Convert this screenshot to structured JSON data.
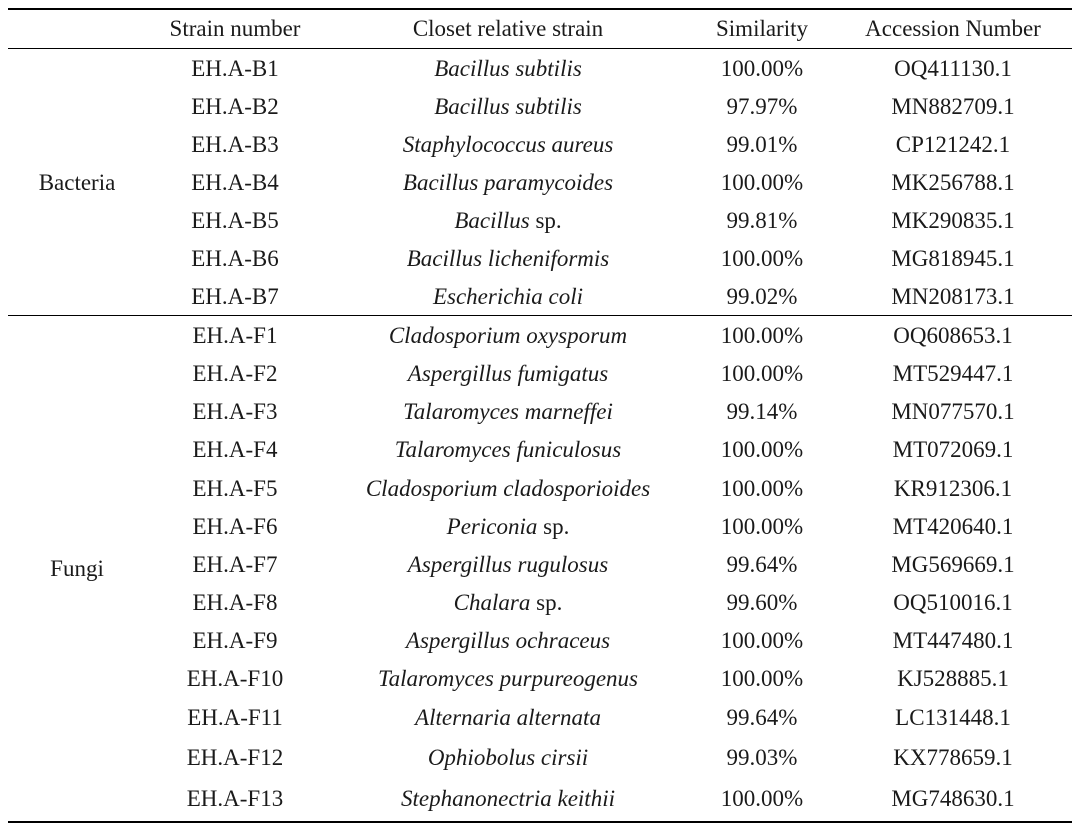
{
  "table": {
    "headers": {
      "group": "",
      "strain": "Strain number",
      "relative": "Closet relative strain",
      "similarity": "Similarity",
      "accession": "Accession Number"
    },
    "groups": [
      {
        "label": "Bacteria"
      },
      {
        "label": "Fungi"
      }
    ],
    "rows": [
      {
        "strain": "EH.A-B1",
        "species": "Bacillus subtilis",
        "suffix": "",
        "similarity": "100.00%",
        "accession": "OQ411130.1"
      },
      {
        "strain": "EH.A-B2",
        "species": "Bacillus subtilis",
        "suffix": "",
        "similarity": "97.97%",
        "accession": "MN882709.1"
      },
      {
        "strain": "EH.A-B3",
        "species": "Staphylococcus aureus",
        "suffix": "",
        "similarity": "99.01%",
        "accession": "CP121242.1"
      },
      {
        "strain": "EH.A-B4",
        "species": "Bacillus paramycoides",
        "suffix": "",
        "similarity": "100.00%",
        "accession": "MK256788.1"
      },
      {
        "strain": "EH.A-B5",
        "species": "Bacillus",
        "suffix": " sp.",
        "similarity": "99.81%",
        "accession": "MK290835.1"
      },
      {
        "strain": "EH.A-B6",
        "species": "Bacillus licheniformis",
        "suffix": "",
        "similarity": "100.00%",
        "accession": "MG818945.1"
      },
      {
        "strain": "EH.A-B7",
        "species": "Escherichia coli",
        "suffix": "",
        "similarity": "99.02%",
        "accession": "MN208173.1"
      },
      {
        "strain": "EH.A-F1",
        "species": "Cladosporium oxysporum",
        "suffix": "",
        "similarity": "100.00%",
        "accession": "OQ608653.1"
      },
      {
        "strain": "EH.A-F2",
        "species": "Aspergillus fumigatus",
        "suffix": "",
        "similarity": "100.00%",
        "accession": "MT529447.1"
      },
      {
        "strain": "EH.A-F3",
        "species": "Talaromyces marneffei",
        "suffix": "",
        "similarity": "99.14%",
        "accession": "MN077570.1"
      },
      {
        "strain": "EH.A-F4",
        "species": "Talaromyces funiculosus",
        "suffix": "",
        "similarity": "100.00%",
        "accession": "MT072069.1"
      },
      {
        "strain": "EH.A-F5",
        "species": "Cladosporium cladosporioides",
        "suffix": "",
        "similarity": "100.00%",
        "accession": "KR912306.1"
      },
      {
        "strain": "EH.A-F6",
        "species": "Periconia",
        "suffix": " sp.",
        "similarity": "100.00%",
        "accession": "MT420640.1"
      },
      {
        "strain": "EH.A-F7",
        "species": "Aspergillus rugulosus",
        "suffix": "",
        "similarity": "99.64%",
        "accession": "MG569669.1"
      },
      {
        "strain": "EH.A-F8",
        "species": "Chalara",
        "suffix": " sp.",
        "similarity": "99.60%",
        "accession": "OQ510016.1"
      },
      {
        "strain": "EH.A-F9",
        "species": "Aspergillus ochraceus",
        "suffix": "",
        "similarity": "100.00%",
        "accession": "MT447480.1"
      },
      {
        "strain": "EH.A-F10",
        "species": "Talaromyces purpureogenus",
        "suffix": "",
        "similarity": "100.00%",
        "accession": "KJ528885.1"
      },
      {
        "strain": "EH.A-F11",
        "species": "Alternaria alternata",
        "suffix": "",
        "similarity": "99.64%",
        "accession": "LC131448.1"
      },
      {
        "strain": "EH.A-F12",
        "species": "Ophiobolus cirsii",
        "suffix": "",
        "similarity": "99.03%",
        "accession": "KX778659.1"
      },
      {
        "strain": "EH.A-F13",
        "species": "Stephanonectria keithii",
        "suffix": "",
        "similarity": "100.00%",
        "accession": "MG748630.1"
      }
    ]
  }
}
